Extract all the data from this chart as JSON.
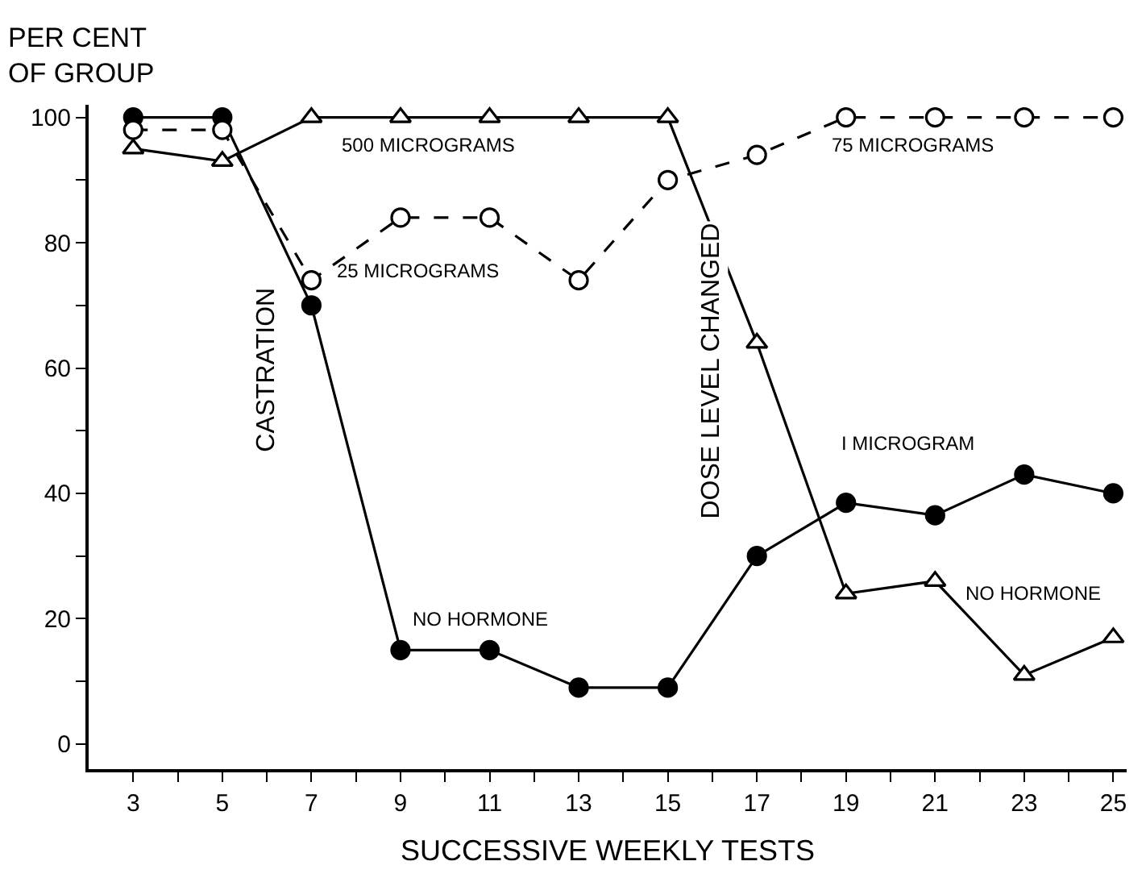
{
  "chart_data": {
    "type": "line",
    "xlabel": "SUCCESSIVE WEEKLY TESTS",
    "ylabel": "PER CENT\nOF GROUP",
    "x": [
      3,
      5,
      7,
      9,
      11,
      13,
      15,
      17,
      19,
      21,
      23,
      25
    ],
    "series": [
      {
        "color": "#000000",
        "marker": "circle",
        "line_style": "solid",
        "values": [
          100,
          100,
          70,
          15,
          15,
          9,
          9,
          30,
          38.5,
          36.5,
          43,
          40
        ]
      },
      {
        "color": "#000000",
        "marker": "circle",
        "line_style": "dashed",
        "values": [
          98,
          98,
          74,
          84,
          84,
          74,
          90,
          94,
          100,
          100,
          100,
          100
        ]
      },
      {
        "color": "#000000",
        "marker": "triangle",
        "line_style": "solid",
        "values": [
          95,
          93,
          100,
          100,
          100,
          100,
          100,
          64,
          24,
          26,
          11,
          17
        ]
      }
    ],
    "xlim": [
      2,
      25.3
    ],
    "ylim": [
      -4,
      102
    ],
    "xticks": [
      3,
      {
        "value": 4,
        "label": null
      },
      5,
      {
        "value": 6,
        "label": null
      },
      7,
      {
        "value": 8,
        "label": null
      },
      9,
      {
        "value": 10,
        "label": null
      },
      11,
      {
        "value": 12,
        "label": null
      },
      13,
      {
        "value": 14,
        "label": null
      },
      15,
      {
        "value": 16,
        "label": null
      },
      17,
      {
        "value": 18,
        "label": null
      },
      19,
      {
        "value": 20,
        "label": null
      },
      21,
      {
        "value": 22,
        "label": null
      },
      23,
      {
        "value": 24,
        "label": null
      },
      25
    ],
    "yticks": [
      0,
      {
        "value": 10,
        "label": null
      },
      20,
      {
        "value": 30,
        "label": null
      },
      40,
      {
        "value": 50,
        "label": null
      },
      60,
      {
        "value": 70,
        "label": null
      },
      80,
      {
        "value": 90,
        "label": null
      },
      100
    ],
    "annotations": [
      "500 MICROGRAMS",
      "25 MICROGRAMS",
      "75 MICROGRAMS",
      "I MICROGRAM",
      "NO HORMONE",
      "NO HORMONE",
      "CASTRATION",
      "DOSE LEVEL CHANGED"
    ]
  }
}
